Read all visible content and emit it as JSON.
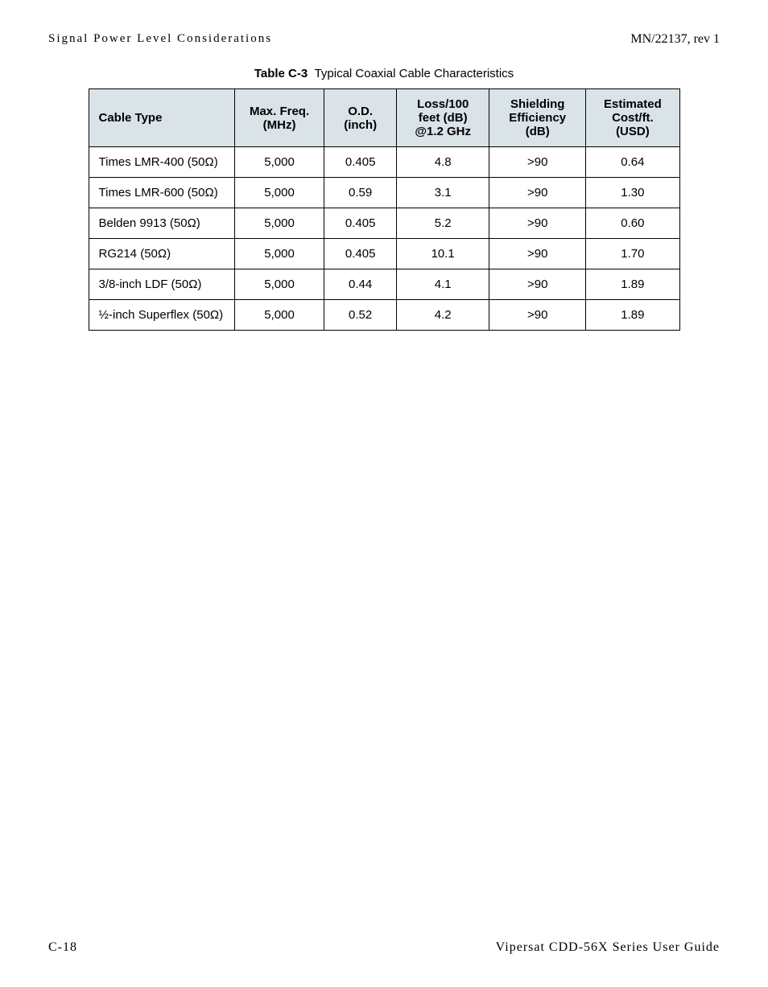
{
  "header": {
    "left": "Signal Power Level Considerations",
    "right": "MN/22137, rev 1"
  },
  "caption": {
    "label": "Table C-3",
    "title": "Typical Coaxial Cable Characteristics"
  },
  "columns": [
    "Cable Type",
    "Max. Freq.\n(MHz)",
    "O.D.\n(inch)",
    "Loss/100\nfeet (dB)\n@1.2 GHz",
    "Shielding\nEfficiency\n(dB)",
    "Estimated\nCost/ft.\n(USD)"
  ],
  "rows": [
    [
      "Times LMR-400 (50Ω)",
      "5,000",
      "0.405",
      "4.8",
      ">90",
      "0.64"
    ],
    [
      "Times LMR-600 (50Ω)",
      "5,000",
      "0.59",
      "3.1",
      ">90",
      "1.30"
    ],
    [
      "Belden 9913 (50Ω)",
      "5,000",
      "0.405",
      "5.2",
      ">90",
      "0.60"
    ],
    [
      "RG214 (50Ω)",
      "5,000",
      "0.405",
      "10.1",
      ">90",
      "1.70"
    ],
    [
      "3/8-inch LDF (50Ω)",
      "5,000",
      "0.44",
      "4.1",
      ">90",
      "1.89"
    ],
    [
      "½-inch Superflex (50Ω)",
      "5,000",
      "0.52",
      "4.2",
      ">90",
      "1.89"
    ]
  ],
  "footer": {
    "left": "C-18",
    "right": "Vipersat CDD-56X Series User Guide"
  },
  "style": {
    "header_bg": "#d9e3e8",
    "border_color": "#000000",
    "page_bg": "#ffffff",
    "body_font": "Helvetica Neue, Arial, sans-serif",
    "header_footer_font": "Georgia, Times New Roman, serif",
    "cell_fontsize": 15,
    "caption_fontsize": 15,
    "header_fontsize": 15,
    "footer_fontsize": 16
  }
}
